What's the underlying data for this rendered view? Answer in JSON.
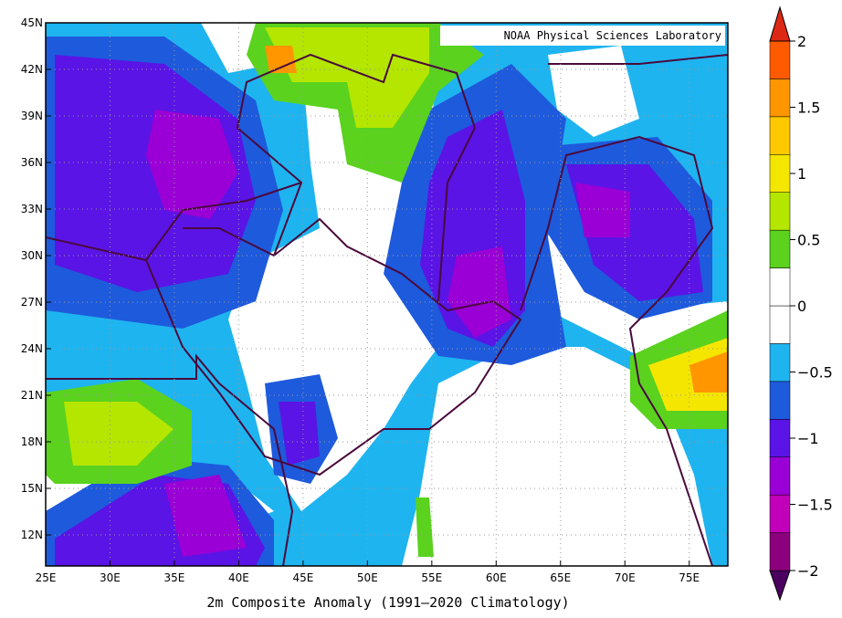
{
  "map": {
    "watermark": "NOAA Physical Sciences Laboratory",
    "title": "2m    Composite Anomaly (1991–2020 Climatology)",
    "lat_range": [
      10,
      45
    ],
    "lon_range": [
      25,
      78
    ],
    "lat_ticks": [
      {
        "value": 45,
        "label": "45N"
      },
      {
        "value": 42,
        "label": "42N"
      },
      {
        "value": 39,
        "label": "39N"
      },
      {
        "value": 36,
        "label": "36N"
      },
      {
        "value": 33,
        "label": "33N"
      },
      {
        "value": 30,
        "label": "30N"
      },
      {
        "value": 27,
        "label": "27N"
      },
      {
        "value": 24,
        "label": "24N"
      },
      {
        "value": 21,
        "label": "21N"
      },
      {
        "value": 18,
        "label": "18N"
      },
      {
        "value": 15,
        "label": "15N"
      },
      {
        "value": 12,
        "label": "12N"
      }
    ],
    "lon_ticks": [
      {
        "value": 25,
        "label": "25E"
      },
      {
        "value": 30,
        "label": "30E"
      },
      {
        "value": 35,
        "label": "35E"
      },
      {
        "value": 40,
        "label": "40E"
      },
      {
        "value": 45,
        "label": "45E"
      },
      {
        "value": 50,
        "label": "50E"
      },
      {
        "value": 55,
        "label": "55E"
      },
      {
        "value": 60,
        "label": "60E"
      },
      {
        "value": 65,
        "label": "65E"
      },
      {
        "value": 70,
        "label": "70E"
      },
      {
        "value": 75,
        "label": "75E"
      }
    ]
  },
  "colorbar": {
    "range": [
      -2,
      2
    ],
    "ticks": [
      2,
      {
        "value": 1.5,
        "label": "1.5"
      },
      1,
      {
        "value": 0.5,
        "label": "0.5"
      },
      0,
      {
        "value": -0.5,
        "label": "−0.5"
      },
      {
        "value": -1,
        "label": "−1"
      },
      {
        "value": -1.5,
        "label": "−1.5"
      },
      {
        "value": -2,
        "label": "−2"
      }
    ],
    "colors": [
      "#4b0060",
      "#8c007d",
      "#c300b9",
      "#9a00d6",
      "#5a14e6",
      "#1e5adc",
      "#1eb4f0",
      "#ffffff",
      "#ffffff",
      "#5ad21e",
      "#b4e600",
      "#f5e600",
      "#ffc800",
      "#ff9600",
      "#ff5a00",
      "#dc2814"
    ]
  }
}
